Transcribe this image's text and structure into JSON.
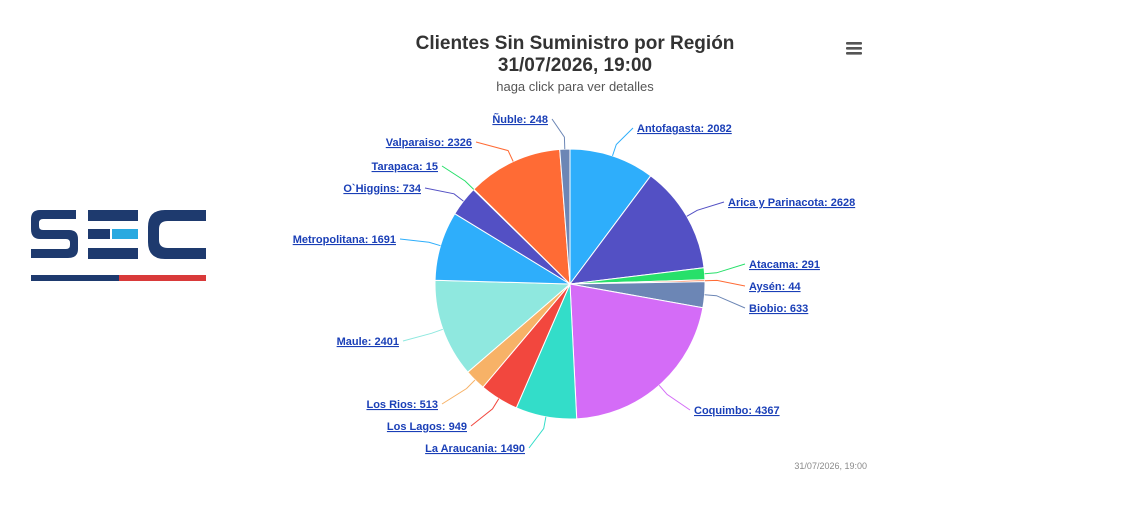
{
  "chart_data": {
    "type": "pie",
    "title": "Clientes Sin Suministro por Región",
    "title_line2": "31/07/2026, 19:00",
    "subtitle": "haga click para ver detalles",
    "credit": "31/07/2026, 19:00",
    "slices": [
      {
        "name": "Antofagasta",
        "value": 2082,
        "color": "#2eaefb",
        "label": "Antofagasta: 2082"
      },
      {
        "name": "Arica y Parinacota",
        "value": 2628,
        "color": "#5350c4",
        "label": "Arica y Parinacota: 2628"
      },
      {
        "name": "Atacama",
        "value": 291,
        "color": "#27e06a",
        "label": "Atacama: 291"
      },
      {
        "name": "Aysén",
        "value": 44,
        "color": "#ff6b35",
        "label": "Aysén: 44"
      },
      {
        "name": "Biobio",
        "value": 633,
        "color": "#6c86b5",
        "label": "Biobio: 633"
      },
      {
        "name": "Coquimbo",
        "value": 4367,
        "color": "#d46cf7",
        "label": "Coquimbo: 4367"
      },
      {
        "name": "La Araucania",
        "value": 1490,
        "color": "#33ddc9",
        "label": "La Araucania: 1490"
      },
      {
        "name": "Los Lagos",
        "value": 949,
        "color": "#f2473e",
        "label": "Los Lagos: 949"
      },
      {
        "name": "Los Rios",
        "value": 513,
        "color": "#f7b267",
        "label": "Los Rios: 513"
      },
      {
        "name": "Maule",
        "value": 2401,
        "color": "#8fe8df",
        "label": "Maule: 2401"
      },
      {
        "name": "Metropolitana",
        "value": 1691,
        "color": "#2eaefb",
        "label": "Metropolitana: 1691"
      },
      {
        "name": "O`Higgins",
        "value": 734,
        "color": "#5350c4",
        "label": "O`Higgins: 734"
      },
      {
        "name": "Tarapaca",
        "value": 15,
        "color": "#27e06a",
        "label": "Tarapaca: 15"
      },
      {
        "name": "Valparaiso",
        "value": 2326,
        "color": "#ff6b35",
        "label": "Valparaiso: 2326"
      },
      {
        "name": "Ñuble",
        "value": 248,
        "color": "#6c86b5",
        "label": "Ñuble: 248"
      }
    ]
  },
  "logo": {
    "colors": {
      "dark": "#1e3a6e",
      "light": "#29a9e0",
      "red": "#d93a3a"
    }
  },
  "icons": {
    "menu": "hamburger-menu-icon"
  }
}
